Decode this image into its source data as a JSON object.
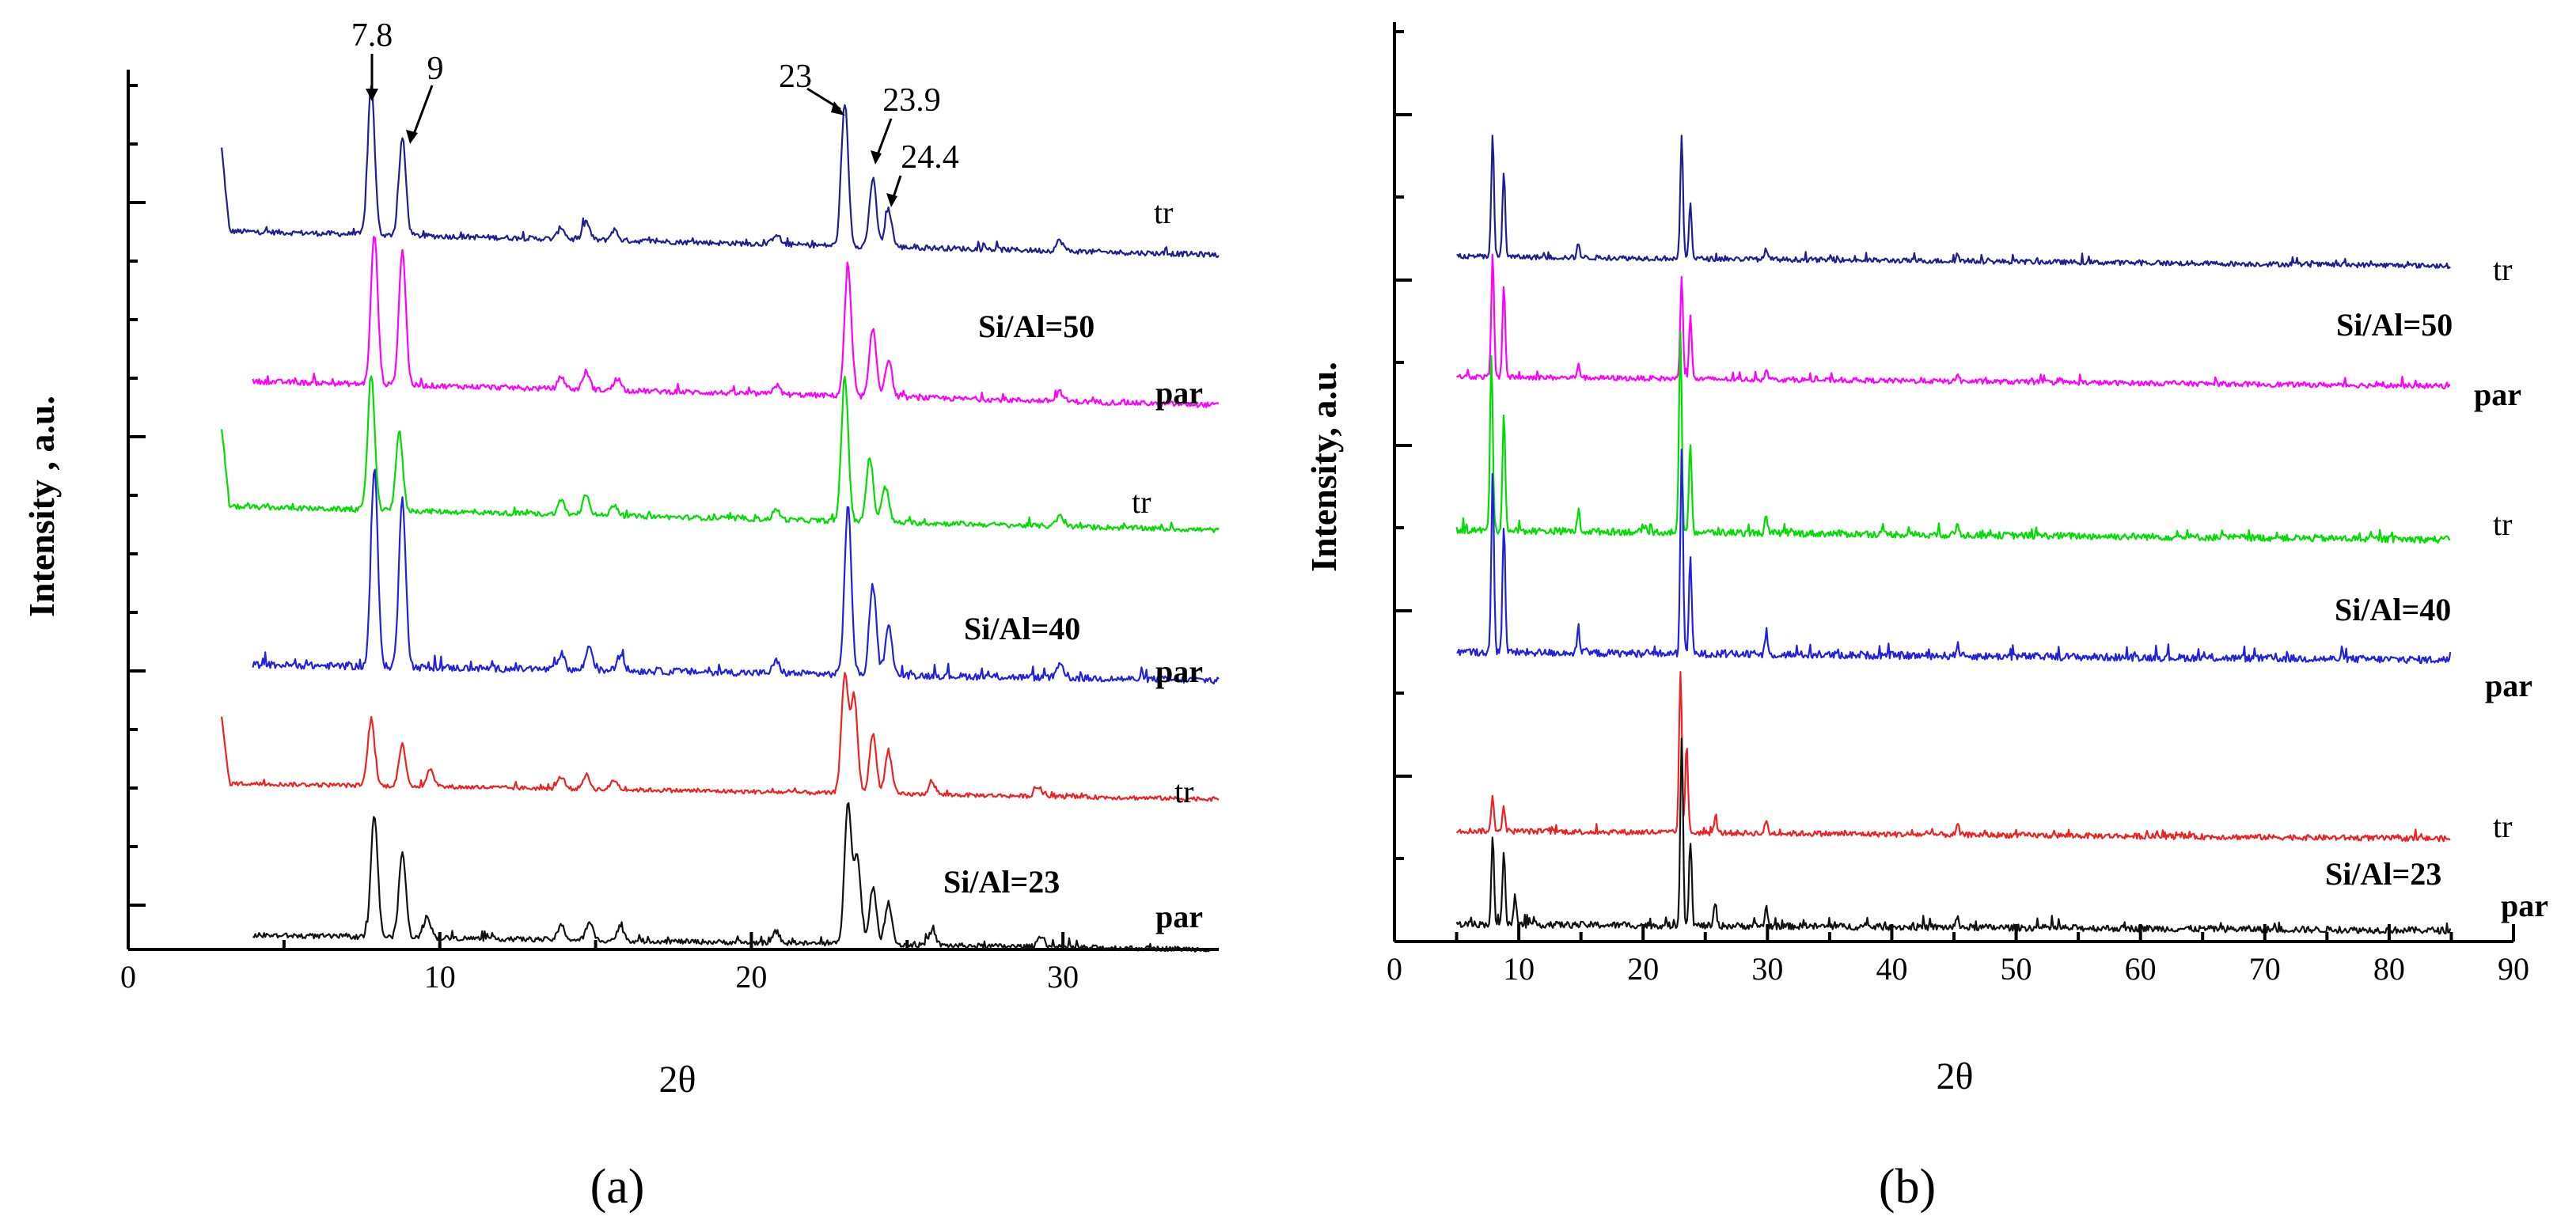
{
  "chart_data": [
    {
      "type": "line",
      "panel_label": "(a)",
      "xlabel": "2θ",
      "ylabel": "Intensity , a.u.",
      "xlim": [
        0,
        35
      ],
      "xticks": [
        0,
        10,
        20,
        30
      ],
      "annotations": [
        {
          "text": "7.8",
          "x": 7.8
        },
        {
          "text": "9",
          "x": 9
        },
        {
          "text": "23",
          "x": 23
        },
        {
          "text": "23.9",
          "x": 23.9
        },
        {
          "text": "24.4",
          "x": 24.4
        }
      ],
      "series": [
        {
          "name": "Si/Al=50 tr",
          "label": "tr",
          "color": "#1f1f8f",
          "x_start": 3,
          "x_end": 35,
          "peaks": [
            [
              7.8,
              1.0
            ],
            [
              8.8,
              0.65
            ],
            [
              23.0,
              0.95
            ],
            [
              23.9,
              0.45
            ],
            [
              24.4,
              0.25
            ],
            [
              14.7,
              0.12
            ],
            [
              13.9,
              0.08
            ],
            [
              15.6,
              0.07
            ],
            [
              20.8,
              0.07
            ],
            [
              29.9,
              0.07
            ]
          ]
        },
        {
          "name": "Si/Al=50 par",
          "label": "par",
          "color": "#ff00ff",
          "x_start": 4,
          "x_end": 35,
          "peaks": [
            [
              7.9,
              1.0
            ],
            [
              8.8,
              0.9
            ],
            [
              23.1,
              0.85
            ],
            [
              23.9,
              0.45
            ],
            [
              24.4,
              0.25
            ],
            [
              14.7,
              0.12
            ],
            [
              13.9,
              0.08
            ],
            [
              15.7,
              0.08
            ],
            [
              20.8,
              0.06
            ],
            [
              29.9,
              0.06
            ]
          ]
        },
        {
          "name": "Si/Al=40 tr",
          "label": "tr",
          "color": "#00dd00",
          "x_start": 3,
          "x_end": 35,
          "peaks": [
            [
              7.8,
              0.95
            ],
            [
              8.7,
              0.55
            ],
            [
              23.0,
              1.0
            ],
            [
              23.8,
              0.45
            ],
            [
              24.3,
              0.25
            ],
            [
              14.7,
              0.15
            ],
            [
              13.9,
              0.1
            ],
            [
              15.6,
              0.08
            ],
            [
              20.8,
              0.07
            ],
            [
              29.9,
              0.07
            ]
          ]
        },
        {
          "name": "Si/Al=40 par",
          "label": "par",
          "color": "#2222dd",
          "x_start": 4,
          "x_end": 35,
          "peaks": [
            [
              7.9,
              1.0
            ],
            [
              8.8,
              0.85
            ],
            [
              23.1,
              0.85
            ],
            [
              23.9,
              0.45
            ],
            [
              24.4,
              0.25
            ],
            [
              14.8,
              0.12
            ],
            [
              13.9,
              0.08
            ],
            [
              15.8,
              0.08
            ],
            [
              20.8,
              0.06
            ],
            [
              29.9,
              0.06
            ]
          ]
        },
        {
          "name": "Si/Al=23 tr",
          "label": "tr",
          "color": "#ee2222",
          "x_start": 3,
          "x_end": 35,
          "peaks": [
            [
              7.8,
              0.55
            ],
            [
              8.8,
              0.35
            ],
            [
              9.7,
              0.15
            ],
            [
              23.0,
              1.0
            ],
            [
              23.3,
              0.8
            ],
            [
              23.9,
              0.5
            ],
            [
              24.4,
              0.35
            ],
            [
              14.7,
              0.12
            ],
            [
              13.9,
              0.1
            ],
            [
              15.6,
              0.08
            ],
            [
              25.8,
              0.1
            ],
            [
              29.2,
              0.08
            ]
          ]
        },
        {
          "name": "Si/Al=23 par",
          "label": "par",
          "color": "#111111",
          "x_start": 4,
          "x_end": 35,
          "peaks": [
            [
              7.9,
              0.85
            ],
            [
              8.8,
              0.6
            ],
            [
              9.6,
              0.15
            ],
            [
              23.1,
              1.0
            ],
            [
              23.4,
              0.6
            ],
            [
              23.9,
              0.4
            ],
            [
              24.4,
              0.3
            ],
            [
              14.8,
              0.12
            ],
            [
              13.9,
              0.1
            ],
            [
              15.8,
              0.1
            ],
            [
              20.8,
              0.08
            ],
            [
              25.8,
              0.1
            ],
            [
              29.3,
              0.08
            ]
          ]
        }
      ],
      "group_labels": [
        "Si/Al=50",
        "Si/Al=40",
        "Si/Al=23"
      ]
    },
    {
      "type": "line",
      "panel_label": "(b)",
      "xlabel": "2θ",
      "ylabel": "Intensity, a.u.",
      "xlim": [
        0,
        90
      ],
      "xticks": [
        0,
        10,
        20,
        30,
        40,
        50,
        60,
        70,
        80,
        90
      ],
      "series": [
        {
          "name": "Si/Al=50 tr",
          "label": "tr",
          "color": "#1f1f8f",
          "x_start": 5,
          "x_end": 85,
          "peaks": [
            [
              7.9,
              0.85
            ],
            [
              8.8,
              0.6
            ],
            [
              23.1,
              0.85
            ],
            [
              23.8,
              0.4
            ],
            [
              14.8,
              0.1
            ],
            [
              29.9,
              0.08
            ],
            [
              45.3,
              0.06
            ]
          ]
        },
        {
          "name": "Si/Al=50 par",
          "label": "par",
          "color": "#ff00ff",
          "x_start": 5,
          "x_end": 85,
          "peaks": [
            [
              7.9,
              0.85
            ],
            [
              8.8,
              0.65
            ],
            [
              23.1,
              0.7
            ],
            [
              23.8,
              0.45
            ],
            [
              14.8,
              0.1
            ],
            [
              29.9,
              0.08
            ],
            [
              45.3,
              0.06
            ]
          ]
        },
        {
          "name": "Si/Al=40 tr",
          "label": "tr",
          "color": "#00dd00",
          "x_start": 5,
          "x_end": 85,
          "peaks": [
            [
              7.8,
              0.9
            ],
            [
              8.8,
              0.6
            ],
            [
              23.0,
              1.0
            ],
            [
              23.8,
              0.45
            ],
            [
              14.8,
              0.1
            ],
            [
              29.9,
              0.08
            ],
            [
              45.3,
              0.06
            ]
          ]
        },
        {
          "name": "Si/Al=40 par",
          "label": "par",
          "color": "#2222dd",
          "x_start": 5,
          "x_end": 85,
          "peaks": [
            [
              7.9,
              0.8
            ],
            [
              8.8,
              0.6
            ],
            [
              23.1,
              0.95
            ],
            [
              23.8,
              0.45
            ],
            [
              14.8,
              0.1
            ],
            [
              29.9,
              0.08
            ],
            [
              45.3,
              0.06
            ]
          ]
        },
        {
          "name": "Si/Al=23 tr",
          "label": "tr",
          "color": "#ee2222",
          "x_start": 5,
          "x_end": 85,
          "peaks": [
            [
              7.9,
              0.22
            ],
            [
              8.8,
              0.15
            ],
            [
              23.0,
              1.0
            ],
            [
              23.5,
              0.55
            ],
            [
              25.8,
              0.1
            ],
            [
              29.9,
              0.08
            ],
            [
              45.3,
              0.06
            ]
          ]
        },
        {
          "name": "Si/Al=23 par",
          "label": "par",
          "color": "#111111",
          "x_start": 5,
          "x_end": 85,
          "peaks": [
            [
              7.9,
              0.45
            ],
            [
              8.8,
              0.4
            ],
            [
              9.7,
              0.15
            ],
            [
              23.1,
              1.0
            ],
            [
              23.8,
              0.45
            ],
            [
              25.8,
              0.12
            ],
            [
              29.9,
              0.1
            ],
            [
              45.3,
              0.06
            ]
          ]
        }
      ],
      "group_labels": [
        "Si/Al=50",
        "Si/Al=40",
        "Si/Al=23"
      ]
    }
  ]
}
